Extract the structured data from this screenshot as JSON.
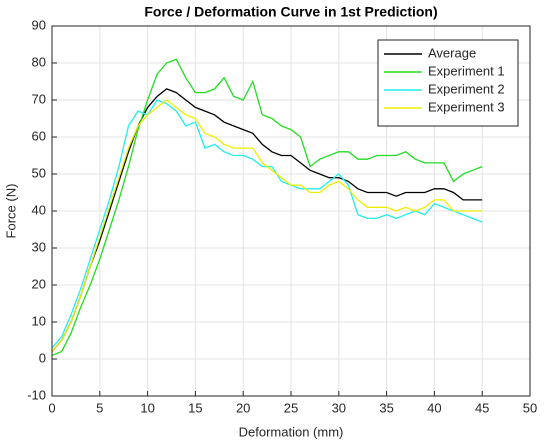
{
  "chart_data": {
    "type": "line",
    "title": "Force / Deformation Curve in 1st Prediction)",
    "xlabel": "Deformation (mm)",
    "ylabel": "Force (N)",
    "xlim": [
      0,
      50
    ],
    "xticks": [
      0,
      5,
      10,
      15,
      20,
      25,
      30,
      35,
      40,
      45,
      50
    ],
    "ylim": [
      -10,
      90
    ],
    "yticks": [
      -10,
      0,
      10,
      20,
      30,
      40,
      50,
      60,
      70,
      80,
      90
    ],
    "grid": true,
    "legend": "top-right",
    "x": [
      0,
      1,
      2,
      3,
      4,
      5,
      6,
      7,
      8,
      9,
      10,
      11,
      12,
      13,
      14,
      15,
      16,
      17,
      18,
      19,
      20,
      21,
      22,
      23,
      24,
      25,
      26,
      27,
      28,
      29,
      30,
      31,
      32,
      33,
      34,
      35,
      36,
      37,
      38,
      39,
      40,
      41,
      42,
      43,
      44,
      45
    ],
    "series": [
      {
        "name": "Average",
        "color": "#000000",
        "values": [
          2,
          5,
          10,
          17,
          25,
          32,
          40,
          48,
          56,
          63,
          68,
          71,
          73,
          72,
          70,
          68,
          67,
          66,
          64,
          63,
          62,
          61,
          58,
          56,
          55,
          55,
          53,
          51,
          50,
          49,
          49,
          48,
          46,
          45,
          45,
          45,
          44,
          45,
          45,
          45,
          46,
          46,
          45,
          43,
          43,
          43
        ]
      },
      {
        "name": "Experiment 1",
        "color": "#22dd22",
        "values": [
          1,
          2,
          7,
          14,
          20,
          27,
          35,
          43,
          52,
          62,
          70,
          77,
          80,
          81,
          76,
          72,
          72,
          73,
          76,
          71,
          70,
          75,
          66,
          65,
          63,
          62,
          60,
          52,
          54,
          55,
          56,
          56,
          54,
          54,
          55,
          55,
          55,
          56,
          54,
          53,
          53,
          53,
          48,
          50,
          51,
          52
        ]
      },
      {
        "name": "Experiment 2",
        "color": "#22eeee",
        "values": [
          3,
          6,
          12,
          19,
          27,
          35,
          43,
          52,
          63,
          67,
          66,
          70,
          69,
          67,
          63,
          64,
          57,
          58,
          56,
          55,
          55,
          54,
          52,
          52,
          48,
          47,
          46,
          46,
          46,
          48,
          50,
          47,
          39,
          38,
          38,
          39,
          38,
          39,
          40,
          39,
          42,
          41,
          40,
          39,
          38,
          37
        ]
      },
      {
        "name": "Experiment 3",
        "color": "#eeee00",
        "values": [
          2,
          5,
          10,
          17,
          25,
          33,
          41,
          49,
          57,
          63,
          66,
          68,
          70,
          68,
          66,
          65,
          61,
          60,
          58,
          57,
          57,
          57,
          53,
          51,
          49,
          47,
          47,
          45,
          45,
          47,
          48,
          46,
          43,
          41,
          41,
          41,
          40,
          41,
          40,
          41,
          43,
          43,
          40,
          40,
          40,
          40
        ]
      }
    ]
  }
}
